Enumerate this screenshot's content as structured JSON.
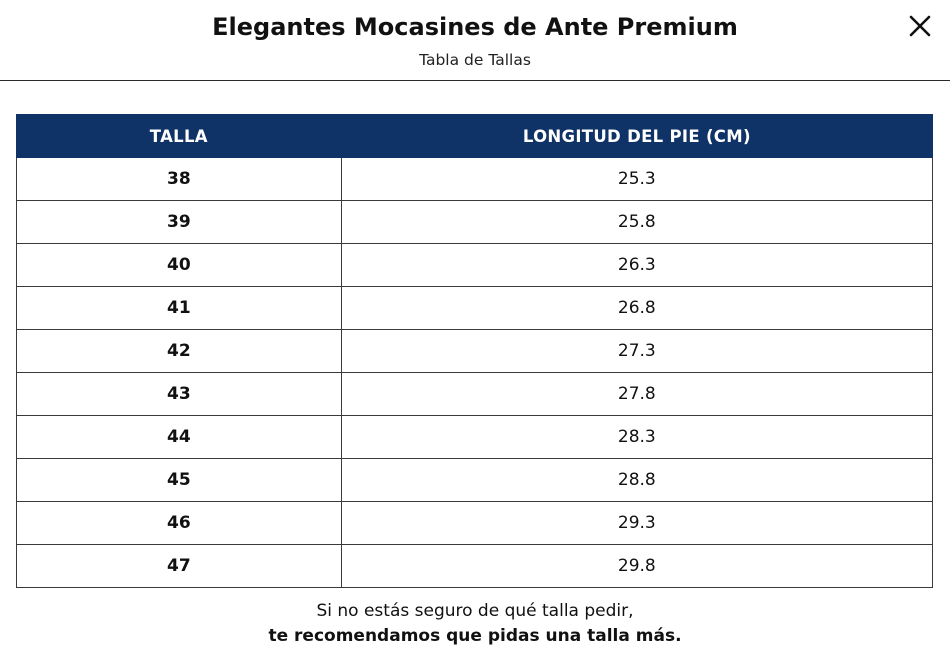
{
  "header": {
    "title": "Elegantes Mocasines de Ante Premium",
    "subtitle": "Tabla de Tallas",
    "close_icon": "close-icon"
  },
  "table": {
    "columns": [
      "TALLA",
      "LONGITUD DEL PIE (CM)"
    ],
    "rows": [
      {
        "talla": "38",
        "longitud": "25.3"
      },
      {
        "talla": "39",
        "longitud": "25.8"
      },
      {
        "talla": "40",
        "longitud": "26.3"
      },
      {
        "talla": "41",
        "longitud": "26.8"
      },
      {
        "talla": "42",
        "longitud": "27.3"
      },
      {
        "talla": "43",
        "longitud": "27.8"
      },
      {
        "talla": "44",
        "longitud": "28.3"
      },
      {
        "talla": "45",
        "longitud": "28.8"
      },
      {
        "talla": "46",
        "longitud": "29.3"
      },
      {
        "talla": "47",
        "longitud": "29.8"
      }
    ]
  },
  "note": {
    "line1": "Si no estás seguro de qué talla pedir,",
    "line2": "te recomendamos que pidas una talla más."
  },
  "colors": {
    "header_bg": "#0f3366",
    "header_text": "#ffffff"
  }
}
